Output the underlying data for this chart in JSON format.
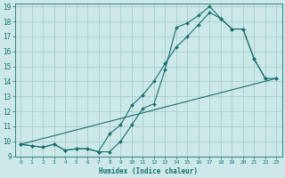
{
  "xlabel": "Humidex (Indice chaleur)",
  "bg_color": "#cce8e8",
  "grid_color": "#aacccc",
  "line_color": "#1a7070",
  "xlim": [
    -0.5,
    23.5
  ],
  "ylim": [
    9,
    19.2
  ],
  "xticks": [
    0,
    1,
    2,
    3,
    4,
    5,
    6,
    7,
    8,
    9,
    10,
    11,
    12,
    13,
    14,
    15,
    16,
    17,
    18,
    19,
    20,
    21,
    22,
    23
  ],
  "yticks": [
    9,
    10,
    11,
    12,
    13,
    14,
    15,
    16,
    17,
    18,
    19
  ],
  "line1_x": [
    0,
    1,
    2,
    3,
    4,
    5,
    6,
    7,
    8,
    9,
    10,
    11,
    12,
    13,
    14,
    15,
    16,
    17,
    18,
    19,
    20,
    21,
    22
  ],
  "line1_y": [
    9.8,
    9.7,
    9.6,
    9.8,
    9.4,
    9.5,
    9.5,
    9.3,
    9.3,
    10.0,
    11.1,
    12.2,
    12.5,
    14.8,
    17.6,
    17.9,
    18.4,
    19.0,
    18.2,
    17.5,
    17.5,
    15.5,
    14.2
  ],
  "line2_x": [
    0,
    1,
    2,
    3,
    4,
    5,
    6,
    7,
    8,
    9,
    10,
    11,
    12,
    13,
    14,
    15,
    16,
    17,
    18,
    19,
    20,
    21,
    22,
    23
  ],
  "line2_y": [
    9.8,
    9.7,
    9.6,
    9.8,
    9.4,
    9.5,
    9.5,
    9.3,
    10.5,
    11.1,
    12.4,
    13.1,
    14.0,
    15.2,
    16.3,
    17.0,
    17.8,
    18.6,
    18.2,
    17.5,
    17.5,
    15.5,
    14.2,
    14.2
  ],
  "line3_x": [
    0,
    23
  ],
  "line3_y": [
    9.8,
    14.2
  ]
}
